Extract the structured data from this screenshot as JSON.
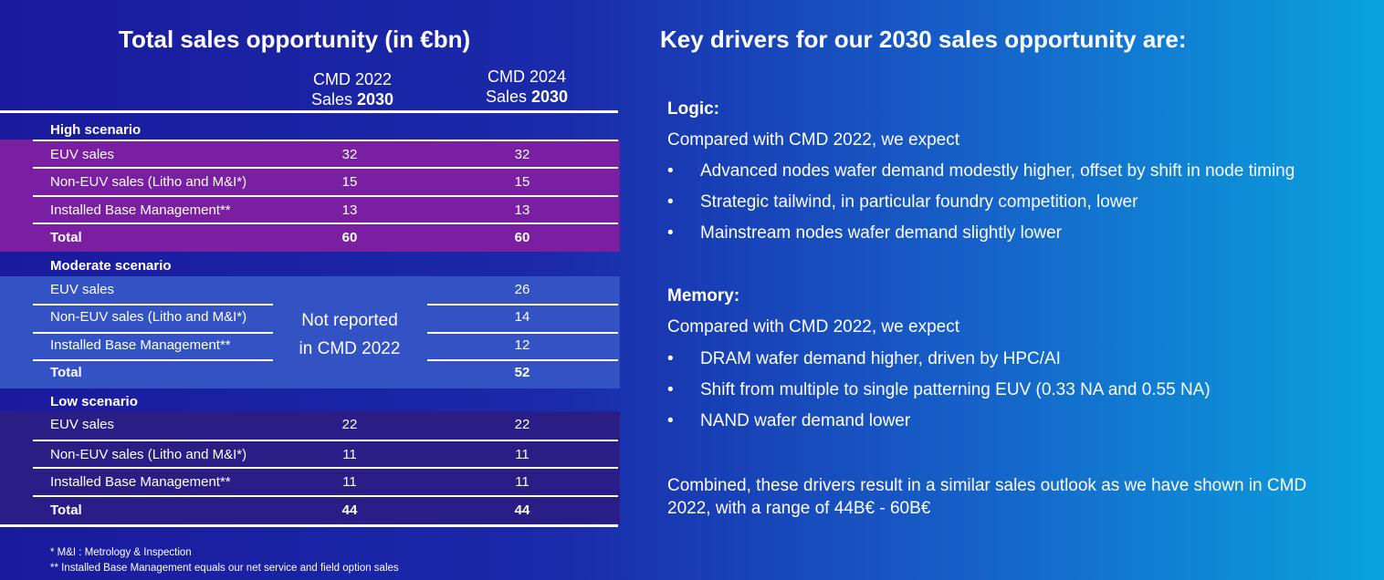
{
  "left": {
    "title": "Total sales opportunity (in €bn)",
    "col1": {
      "line1": "CMD 2022",
      "line2a": "Sales ",
      "line2b": "2030"
    },
    "col2": {
      "line1": "CMD 2024",
      "line2a": "Sales ",
      "line2b": "2030"
    },
    "high": {
      "label": "High scenario",
      "rows": [
        [
          "EUV sales",
          "32",
          "32"
        ],
        [
          "Non-EUV sales (Litho and M&I*)",
          "15",
          "15"
        ],
        [
          "Installed Base Management**",
          "13",
          "13"
        ],
        [
          "Total",
          "60",
          "60"
        ]
      ]
    },
    "moderate": {
      "label": "Moderate scenario",
      "not_reported_1": "Not reported",
      "not_reported_2": "in CMD 2022",
      "rows": [
        [
          "EUV sales",
          "26"
        ],
        [
          "Non-EUV sales (Litho and M&I*)",
          "14"
        ],
        [
          "Installed Base Management**",
          "12"
        ],
        [
          "Total",
          "52"
        ]
      ]
    },
    "low": {
      "label": "Low scenario",
      "rows": [
        [
          "EUV sales",
          "22",
          "22"
        ],
        [
          "Non-EUV sales (Litho and M&I*)",
          "11",
          "11"
        ],
        [
          "Installed Base Management**",
          "11",
          "11"
        ],
        [
          "Total",
          "44",
          "44"
        ]
      ]
    },
    "footnotes": [
      "* M&I : Metrology & Inspection",
      "** Installed Base Management equals our net service and field option sales"
    ]
  },
  "right": {
    "title": "Key drivers for our 2030 sales opportunity are:",
    "logic": {
      "heading": "Logic:",
      "intro": "Compared with CMD 2022, we expect",
      "bullets": [
        "Advanced nodes wafer demand modestly higher, offset by shift in node timing",
        "Strategic tailwind, in particular foundry competition, lower",
        "Mainstream nodes wafer demand slightly lower"
      ]
    },
    "memory": {
      "heading": "Memory:",
      "intro": "Compared with CMD 2022, we expect",
      "bullets": [
        "DRAM wafer demand higher, driven by HPC/AI",
        "Shift from multiple to single patterning EUV (0.33 NA and 0.55 NA)",
        "NAND wafer demand lower"
      ]
    },
    "bullet_char": "•",
    "conclusion_1": "Combined, these drivers result in a similar sales outlook as we have shown in CMD",
    "conclusion_2": "2022, with a range of 44B€ - 60B€"
  },
  "colors": {
    "high_band": "#7a1fa2",
    "moderate_band": "#3352c4",
    "low_band": "#2a1e86"
  }
}
